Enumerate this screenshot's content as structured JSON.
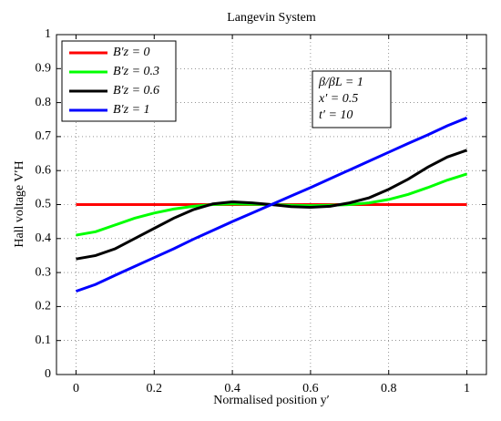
{
  "chart_data": {
    "type": "line",
    "title": "Langevin System",
    "xlabel": "Normalised position y′",
    "ylabel": "Hall voltage V′H",
    "annotations": [
      "β/βL = 1",
      "x′ = 0.5",
      "t′ = 10"
    ],
    "x": [
      0,
      0.05,
      0.1,
      0.15,
      0.2,
      0.25,
      0.3,
      0.35,
      0.4,
      0.45,
      0.5,
      0.55,
      0.6,
      0.65,
      0.7,
      0.75,
      0.8,
      0.85,
      0.9,
      0.95,
      1
    ],
    "series": [
      {
        "name": "B′z = 0",
        "color": "#ff0000",
        "values": [
          0.5,
          0.5,
          0.5,
          0.5,
          0.5,
          0.5,
          0.5,
          0.5,
          0.5,
          0.5,
          0.5,
          0.5,
          0.5,
          0.5,
          0.5,
          0.5,
          0.5,
          0.5,
          0.5,
          0.5,
          0.5
        ]
      },
      {
        "name": "B′z = 0.3",
        "color": "#00ff00",
        "values": [
          0.41,
          0.42,
          0.44,
          0.46,
          0.475,
          0.487,
          0.495,
          0.5,
          0.502,
          0.501,
          0.5,
          0.498,
          0.497,
          0.498,
          0.5,
          0.505,
          0.515,
          0.53,
          0.55,
          0.572,
          0.59
        ]
      },
      {
        "name": "B′z = 0.6",
        "color": "#000000",
        "values": [
          0.34,
          0.35,
          0.37,
          0.4,
          0.43,
          0.46,
          0.485,
          0.502,
          0.508,
          0.505,
          0.5,
          0.494,
          0.492,
          0.495,
          0.505,
          0.52,
          0.545,
          0.575,
          0.61,
          0.64,
          0.66
        ]
      },
      {
        "name": "B′z = 1",
        "color": "#0000ff",
        "values": [
          0.245,
          0.265,
          0.292,
          0.318,
          0.344,
          0.37,
          0.398,
          0.424,
          0.45,
          0.475,
          0.5,
          0.525,
          0.55,
          0.576,
          0.602,
          0.628,
          0.654,
          0.68,
          0.705,
          0.732,
          0.755
        ]
      }
    ],
    "xlim": [
      -0.05,
      1.05
    ],
    "xticks": [
      0,
      0.2,
      0.4,
      0.6,
      0.8,
      1
    ],
    "ylim": [
      0,
      1
    ],
    "yticks": [
      0,
      0.1,
      0.2,
      0.3,
      0.4,
      0.5,
      0.6,
      0.7,
      0.8,
      0.9,
      1
    ],
    "grid": true,
    "legend": "upper left"
  }
}
